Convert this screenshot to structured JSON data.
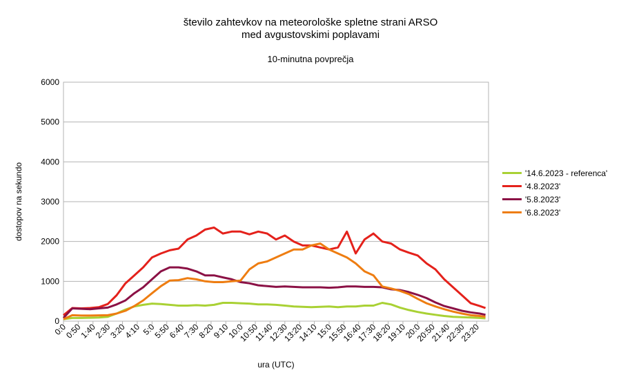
{
  "title_line1": "število zahtevkov na meteorološke spletne strani ARSO",
  "title_line2": "med avgustovskimi poplavami",
  "subtitle": "10-minutna povprečja",
  "chart_data": {
    "type": "line",
    "title": "število zahtevkov na meteorološke spletne strani ARSO med avgustovskimi poplavami",
    "subtitle": "10-minutna povprečja",
    "xlabel": "ura (UTC)",
    "ylabel": "dostopov na sekundo",
    "ylim": [
      0,
      6000
    ],
    "yticks": [
      0,
      1000,
      2000,
      3000,
      4000,
      5000,
      6000
    ],
    "xtick_labels": [
      "0:0",
      "0:50",
      "1:40",
      "2:30",
      "3:20",
      "4:10",
      "5:0",
      "5:50",
      "6:40",
      "7:30",
      "8:20",
      "9:10",
      "10:0",
      "10:50",
      "11:40",
      "12:30",
      "13:20",
      "14:10",
      "15:0",
      "15:50",
      "16:40",
      "17:30",
      "18:20",
      "19:10",
      "20:0",
      "20:50",
      "21:40",
      "22:30",
      "23:20"
    ],
    "x_hours": [
      0,
      0.5,
      1,
      1.5,
      2,
      2.5,
      3,
      3.5,
      4,
      4.5,
      5,
      5.5,
      6,
      6.5,
      7,
      7.5,
      8,
      8.5,
      9,
      9.5,
      10,
      10.5,
      11,
      11.5,
      12,
      12.5,
      13,
      13.5,
      14,
      14.5,
      15,
      15.5,
      16,
      16.5,
      17,
      17.5,
      18,
      18.5,
      19,
      19.5,
      20,
      20.5,
      21,
      21.5,
      22,
      22.5,
      23,
      23.5,
      23.83
    ],
    "grid": true,
    "legend_position": "right",
    "series": [
      {
        "name": "'14.6.2023 - referenca'",
        "color": "#a9d134",
        "values": [
          50,
          80,
          80,
          85,
          90,
          110,
          190,
          290,
          370,
          410,
          440,
          430,
          410,
          390,
          390,
          400,
          390,
          410,
          460,
          460,
          450,
          440,
          420,
          420,
          410,
          390,
          370,
          360,
          350,
          360,
          370,
          350,
          370,
          370,
          390,
          390,
          460,
          420,
          340,
          280,
          230,
          190,
          160,
          130,
          110,
          100,
          90,
          80,
          70
        ]
      },
      {
        "name": "'4.8.2023'",
        "color": "#e4211b",
        "values": [
          150,
          330,
          320,
          330,
          350,
          430,
          650,
          950,
          1150,
          1350,
          1600,
          1700,
          1780,
          1820,
          2050,
          2150,
          2300,
          2350,
          2200,
          2250,
          2250,
          2180,
          2250,
          2200,
          2050,
          2150,
          2000,
          1900,
          1900,
          1850,
          1800,
          1850,
          2250,
          1700,
          2050,
          2200,
          2000,
          1950,
          1800,
          1720,
          1650,
          1450,
          1300,
          1050,
          850,
          650,
          450,
          380,
          330
        ]
      },
      {
        "name": "'5.8.2023'",
        "color": "#8b1145",
        "values": [
          80,
          320,
          310,
          300,
          320,
          340,
          420,
          520,
          700,
          850,
          1050,
          1250,
          1350,
          1350,
          1320,
          1250,
          1150,
          1150,
          1100,
          1050,
          980,
          950,
          900,
          880,
          860,
          870,
          860,
          850,
          850,
          850,
          840,
          850,
          870,
          870,
          860,
          860,
          850,
          800,
          780,
          730,
          660,
          580,
          470,
          380,
          320,
          260,
          220,
          190,
          160
        ]
      },
      {
        "name": "'6.8.2023'",
        "color": "#ee7d11",
        "values": [
          50,
          150,
          140,
          140,
          145,
          150,
          190,
          260,
          380,
          520,
          700,
          880,
          1020,
          1030,
          1080,
          1050,
          1000,
          980,
          980,
          1000,
          1020,
          1300,
          1450,
          1500,
          1600,
          1700,
          1800,
          1800,
          1900,
          1950,
          1800,
          1700,
          1600,
          1450,
          1250,
          1150,
          870,
          820,
          760,
          680,
          560,
          450,
          370,
          300,
          240,
          190,
          150,
          130,
          110
        ]
      }
    ]
  }
}
